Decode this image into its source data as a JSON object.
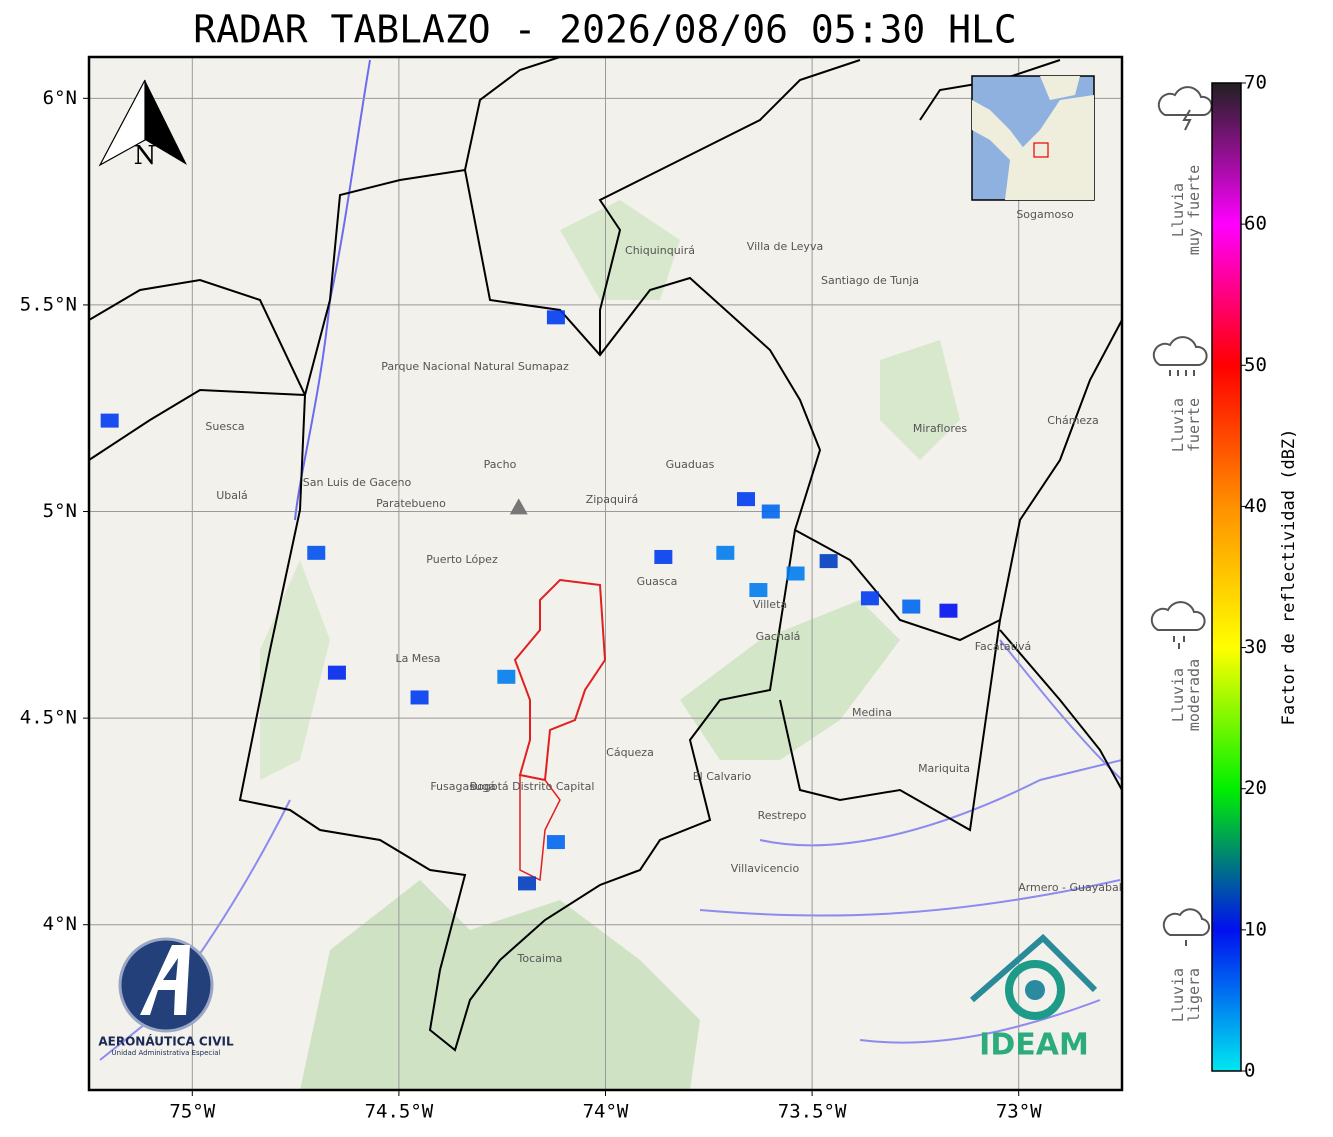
{
  "title": "RADAR TABLAZO - 2026/08/06 05:30 HLC",
  "map": {
    "xlim": [
      -75.25,
      -72.75
    ],
    "ylim": [
      3.6,
      6.1
    ],
    "xticks": [
      {
        "value": -75,
        "label": "75°W"
      },
      {
        "value": -74.5,
        "label": "74.5°W"
      },
      {
        "value": -74,
        "label": "74°W"
      },
      {
        "value": -73.5,
        "label": "73.5°W"
      },
      {
        "value": -73,
        "label": "73°W"
      }
    ],
    "yticks": [
      {
        "value": 6,
        "label": "6°N"
      },
      {
        "value": 5.5,
        "label": "5.5°N"
      },
      {
        "value": 5,
        "label": "5°N"
      },
      {
        "value": 4.5,
        "label": "4.5°N"
      },
      {
        "value": 4,
        "label": "4°N"
      }
    ],
    "grid": true,
    "radar": {
      "lon": -74.21,
      "lat": 5.01
    },
    "places": [
      "Villavicencio",
      "Zipaquirá",
      "Sogamoso",
      "Chiquinquirá",
      "Villa de Leyva",
      "Santiago de Tunja",
      "Fusagasugá",
      "La Mesa",
      "Cáqueza",
      "Guasca",
      "Gachalá",
      "Miraflores",
      "Chámeza",
      "Medina",
      "Restrepo",
      "El Calvario",
      "Bogotá Distrito Capital",
      "Tocaima",
      "Pacho",
      "Guaduas",
      "Villeta",
      "Facatativá",
      "Mariquita",
      "Armero - Guayabal",
      "Parque Nacional Natural Sumapaz",
      "Suesca",
      "Ubalá",
      "San Luis de Gaceno",
      "Paratebueno",
      "Puerto López"
    ],
    "echoes": [
      {
        "lon": -73.66,
        "lat": 5.03,
        "dbz": 8
      },
      {
        "lon": -73.6,
        "lat": 5.0,
        "dbz": 6
      },
      {
        "lon": -73.63,
        "lat": 4.81,
        "dbz": 5
      },
      {
        "lon": -73.54,
        "lat": 4.85,
        "dbz": 5
      },
      {
        "lon": -73.46,
        "lat": 4.88,
        "dbz": 12
      },
      {
        "lon": -73.36,
        "lat": 4.79,
        "dbz": 8
      },
      {
        "lon": -73.26,
        "lat": 4.77,
        "dbz": 6
      },
      {
        "lon": -73.17,
        "lat": 4.76,
        "dbz": 10
      },
      {
        "lon": -74.45,
        "lat": 4.55,
        "dbz": 8
      },
      {
        "lon": -74.65,
        "lat": 4.61,
        "dbz": 9
      },
      {
        "lon": -74.7,
        "lat": 4.9,
        "dbz": 7
      },
      {
        "lon": -74.19,
        "lat": 4.1,
        "dbz": 12
      },
      {
        "lon": -74.12,
        "lat": 4.2,
        "dbz": 6
      },
      {
        "lon": -74.24,
        "lat": 4.6,
        "dbz": 5
      },
      {
        "lon": -74.12,
        "lat": 5.47,
        "dbz": 8
      },
      {
        "lon": -75.2,
        "lat": 5.22,
        "dbz": 8
      },
      {
        "lon": -73.86,
        "lat": 4.89,
        "dbz": 8
      },
      {
        "lon": -73.71,
        "lat": 4.9,
        "dbz": 5
      }
    ]
  },
  "colorbar": {
    "label": "Factor de reflectividad (dBZ)",
    "lim": [
      0,
      70
    ],
    "ticks": [
      0,
      10,
      20,
      30,
      40,
      50,
      60,
      70
    ],
    "colors": [
      "#00e8f0",
      "#0010f0",
      "#00f000",
      "#ffff00",
      "#ff9000",
      "#ff0000",
      "#ff00ff",
      "#202020"
    ]
  },
  "rain_levels": [
    [
      "Lluvia",
      "ligera"
    ],
    [
      "Lluvia",
      "moderada"
    ],
    [
      "Lluvia",
      "fuerte"
    ],
    [
      "Lluvia",
      "muy fuerte"
    ]
  ],
  "logos": {
    "north": "N",
    "aerocivil": "AERONÁUTICA CIVIL",
    "aerocivil_sub": "Unidad Administrativa Especial",
    "ideam": "IDEAM"
  }
}
